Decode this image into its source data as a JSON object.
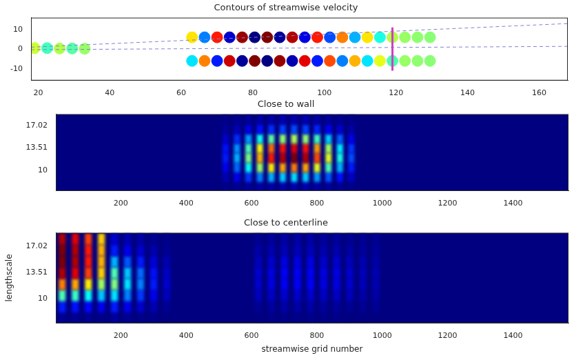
{
  "chart_data": [
    {
      "type": "scatter",
      "title": "Contours of streamwise velocity",
      "xlim": [
        18,
        168
      ],
      "xticks": [
        20,
        40,
        60,
        80,
        100,
        120,
        140,
        160
      ],
      "ylim": [
        -16,
        16
      ],
      "yticks": [
        -10,
        0,
        10
      ],
      "zlim": [
        -1,
        1
      ],
      "points": [
        [
          19,
          0.5,
          0.15
        ],
        [
          22.5,
          0.5,
          -0.12
        ],
        [
          26,
          0.3,
          0.1
        ],
        [
          29.5,
          0.3,
          -0.08
        ],
        [
          33,
          0.2,
          0.05
        ],
        [
          63,
          6,
          0.3
        ],
        [
          66.5,
          6,
          -0.5
        ],
        [
          70,
          6,
          0.7
        ],
        [
          73.5,
          6,
          -0.85
        ],
        [
          77,
          6,
          0.95
        ],
        [
          80.5,
          6,
          -1
        ],
        [
          84,
          6,
          1
        ],
        [
          87.5,
          6,
          -0.95
        ],
        [
          91,
          6,
          0.9
        ],
        [
          94.5,
          6,
          -0.8
        ],
        [
          98,
          6,
          0.7
        ],
        [
          101.5,
          6,
          -0.6
        ],
        [
          105,
          6,
          0.5
        ],
        [
          108.5,
          6,
          -0.4
        ],
        [
          112,
          6,
          0.3
        ],
        [
          115.5,
          6,
          -0.2
        ],
        [
          119,
          6,
          0.1
        ],
        [
          122.5,
          6,
          0.05
        ],
        [
          126,
          6,
          0.03
        ],
        [
          129.5,
          6,
          0.02
        ],
        [
          63,
          -6,
          -0.3
        ],
        [
          66.5,
          -6,
          0.5
        ],
        [
          70,
          -6,
          -0.7
        ],
        [
          73.5,
          -6,
          0.85
        ],
        [
          77,
          -6,
          -0.95
        ],
        [
          80.5,
          -6,
          1
        ],
        [
          84,
          -6,
          -1
        ],
        [
          87.5,
          -6,
          0.95
        ],
        [
          91,
          -6,
          -0.9
        ],
        [
          94.5,
          -6,
          0.8
        ],
        [
          98,
          -6,
          -0.7
        ],
        [
          101.5,
          -6,
          0.6
        ],
        [
          105,
          -6,
          -0.5
        ],
        [
          108.5,
          -6,
          0.4
        ],
        [
          112,
          -6,
          -0.3
        ],
        [
          115.5,
          -6,
          0.2
        ],
        [
          119,
          -6,
          -0.1
        ],
        [
          122.5,
          -6,
          0.05
        ],
        [
          126,
          -6,
          0.03
        ],
        [
          129.5,
          -6,
          0.02
        ]
      ],
      "series": [
        {
          "type": "line",
          "line_style": "solid",
          "color": "#d040c0",
          "x": [
            119,
            119
          ],
          "y": [
            -11,
            11
          ]
        },
        {
          "type": "line",
          "line_style": "dashed",
          "color": "#8080d0",
          "x": [
            18,
            168
          ],
          "y": [
            1,
            13
          ]
        },
        {
          "type": "line",
          "line_style": "dashed",
          "color": "#8080d0",
          "x": [
            18,
            168
          ],
          "y": [
            -0.3,
            1.4
          ]
        }
      ]
    },
    {
      "type": "heatmap",
      "title": "Close to wall",
      "xlim": [
        1,
        1570
      ],
      "xticks": [
        200,
        400,
        600,
        800,
        1000,
        1200,
        1400
      ],
      "ylim": [
        6.8,
        18.8
      ],
      "yticks": [
        10,
        13.51,
        17.02
      ],
      "zlim": [
        0,
        1
      ],
      "x": [
        520,
        555,
        590,
        625,
        660,
        695,
        730,
        765,
        800,
        835,
        870,
        905
      ],
      "y": [
        7.5,
        9,
        10.5,
        12,
        13.5,
        15,
        16.5,
        18
      ],
      "z": [
        [
          0.01,
          0.02,
          0.03,
          0.04,
          0.04,
          0.05,
          0.05,
          0.05,
          0.04,
          0.03,
          0.02,
          0.01
        ],
        [
          0.05,
          0.11,
          0.18,
          0.25,
          0.3,
          0.33,
          0.35,
          0.33,
          0.28,
          0.21,
          0.14,
          0.07
        ],
        [
          0.11,
          0.23,
          0.38,
          0.53,
          0.64,
          0.71,
          0.75,
          0.71,
          0.6,
          0.45,
          0.3,
          0.15
        ],
        [
          0.15,
          0.3,
          0.5,
          0.7,
          0.85,
          0.95,
          1.0,
          0.95,
          0.8,
          0.6,
          0.4,
          0.2
        ],
        [
          0.14,
          0.27,
          0.45,
          0.63,
          0.77,
          0.86,
          0.9,
          0.86,
          0.72,
          0.54,
          0.36,
          0.18
        ],
        [
          0.08,
          0.17,
          0.28,
          0.39,
          0.47,
          0.52,
          0.55,
          0.52,
          0.44,
          0.33,
          0.22,
          0.11
        ],
        [
          0.03,
          0.06,
          0.1,
          0.14,
          0.17,
          0.19,
          0.2,
          0.19,
          0.16,
          0.12,
          0.08,
          0.04
        ],
        [
          0.01,
          0.02,
          0.03,
          0.04,
          0.04,
          0.05,
          0.05,
          0.05,
          0.04,
          0.03,
          0.02,
          0.01
        ]
      ]
    },
    {
      "type": "heatmap",
      "title": "Close to centerline",
      "xlabel": "streamwise grid number",
      "ylabel": "lengthscale",
      "xlim": [
        1,
        1570
      ],
      "xticks": [
        200,
        400,
        600,
        800,
        1000,
        1200,
        1400
      ],
      "ylim": [
        6.8,
        18.8
      ],
      "yticks": [
        10,
        13.51,
        17.02
      ],
      "zlim": [
        0,
        1
      ],
      "x": [
        20,
        60,
        100,
        140,
        180,
        220,
        260,
        300,
        340,
        620,
        660,
        700,
        740,
        780,
        820,
        860,
        900,
        940,
        980
      ],
      "y": [
        7.5,
        9,
        10.5,
        12,
        13.5,
        15,
        16.5,
        18
      ],
      "z": [
        [
          0.02,
          0.02,
          0.02,
          0.01,
          0.03,
          0.02,
          0.01,
          0.01,
          0,
          0,
          0.01,
          0.01,
          0.01,
          0.01,
          0.01,
          0.01,
          0,
          0,
          0
        ],
        [
          0.15,
          0.14,
          0.13,
          0.11,
          0.15,
          0.11,
          0.08,
          0.05,
          0.02,
          0.02,
          0.03,
          0.04,
          0.04,
          0.04,
          0.03,
          0.03,
          0.02,
          0.02,
          0.02
        ],
        [
          0.45,
          0.43,
          0.38,
          0.32,
          0.35,
          0.25,
          0.18,
          0.11,
          0.06,
          0.06,
          0.07,
          0.08,
          0.08,
          0.08,
          0.07,
          0.07,
          0.06,
          0.04,
          0.04
        ],
        [
          0.75,
          0.71,
          0.64,
          0.53,
          0.5,
          0.35,
          0.25,
          0.15,
          0.08,
          0.08,
          0.1,
          0.12,
          0.12,
          0.12,
          0.1,
          0.1,
          0.08,
          0.06,
          0.05
        ],
        [
          0.95,
          0.9,
          0.81,
          0.67,
          0.45,
          0.32,
          0.23,
          0.14,
          0.07,
          0.08,
          0.1,
          0.12,
          0.12,
          0.12,
          0.1,
          0.1,
          0.08,
          0.06,
          0.05
        ],
        [
          1,
          0.95,
          0.85,
          0.7,
          0.3,
          0.21,
          0.15,
          0.09,
          0.05,
          0.06,
          0.08,
          0.1,
          0.1,
          0.1,
          0.08,
          0.08,
          0.06,
          0.05,
          0.04
        ],
        [
          1,
          0.95,
          0.85,
          0.7,
          0.15,
          0.11,
          0.08,
          0.05,
          0.02,
          0.04,
          0.05,
          0.06,
          0.06,
          0.06,
          0.05,
          0.05,
          0.04,
          0.03,
          0.03
        ],
        [
          0.95,
          0.9,
          0.81,
          0.67,
          0.08,
          0.05,
          0.04,
          0.02,
          0.01,
          0.02,
          0.03,
          0.04,
          0.04,
          0.04,
          0.03,
          0.03,
          0.02,
          0.02,
          0.02
        ]
      ]
    }
  ]
}
